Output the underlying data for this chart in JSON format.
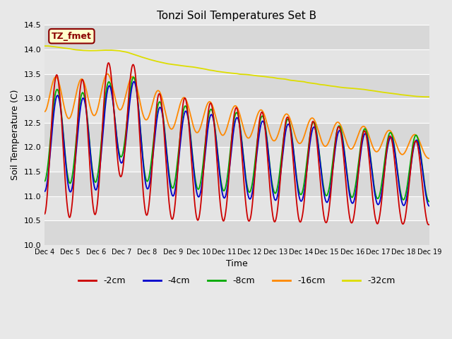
{
  "title": "Tonzi Soil Temperatures Set B",
  "xlabel": "Time",
  "ylabel": "Soil Temperature (C)",
  "ylim": [
    10.0,
    14.5
  ],
  "annotation_text": "TZ_fmet",
  "annotation_bg": "#ffffcc",
  "annotation_border": "#8b0000",
  "legend_labels": [
    "-2cm",
    "-4cm",
    "-8cm",
    "-16cm",
    "-32cm"
  ],
  "legend_colors": [
    "#cc0000",
    "#0000cc",
    "#00aa00",
    "#ff8800",
    "#dddd00"
  ],
  "x_tick_labels": [
    "Dec 4",
    "Dec 5",
    "Dec 6",
    "Dec 7",
    "Dec 8",
    "Dec 9",
    "Dec 10",
    "Dec 11",
    "Dec 12",
    "Dec 13",
    "Dec 14",
    "Dec 15",
    "Dec 16",
    "Dec 17",
    "Dec 18",
    "Dec 19"
  ],
  "bg_color": "#e8e8e8",
  "stripe_dark": "#d8d8d8",
  "stripe_light": "#e4e4e4",
  "grid_color": "#ffffff",
  "n_points": 4000
}
